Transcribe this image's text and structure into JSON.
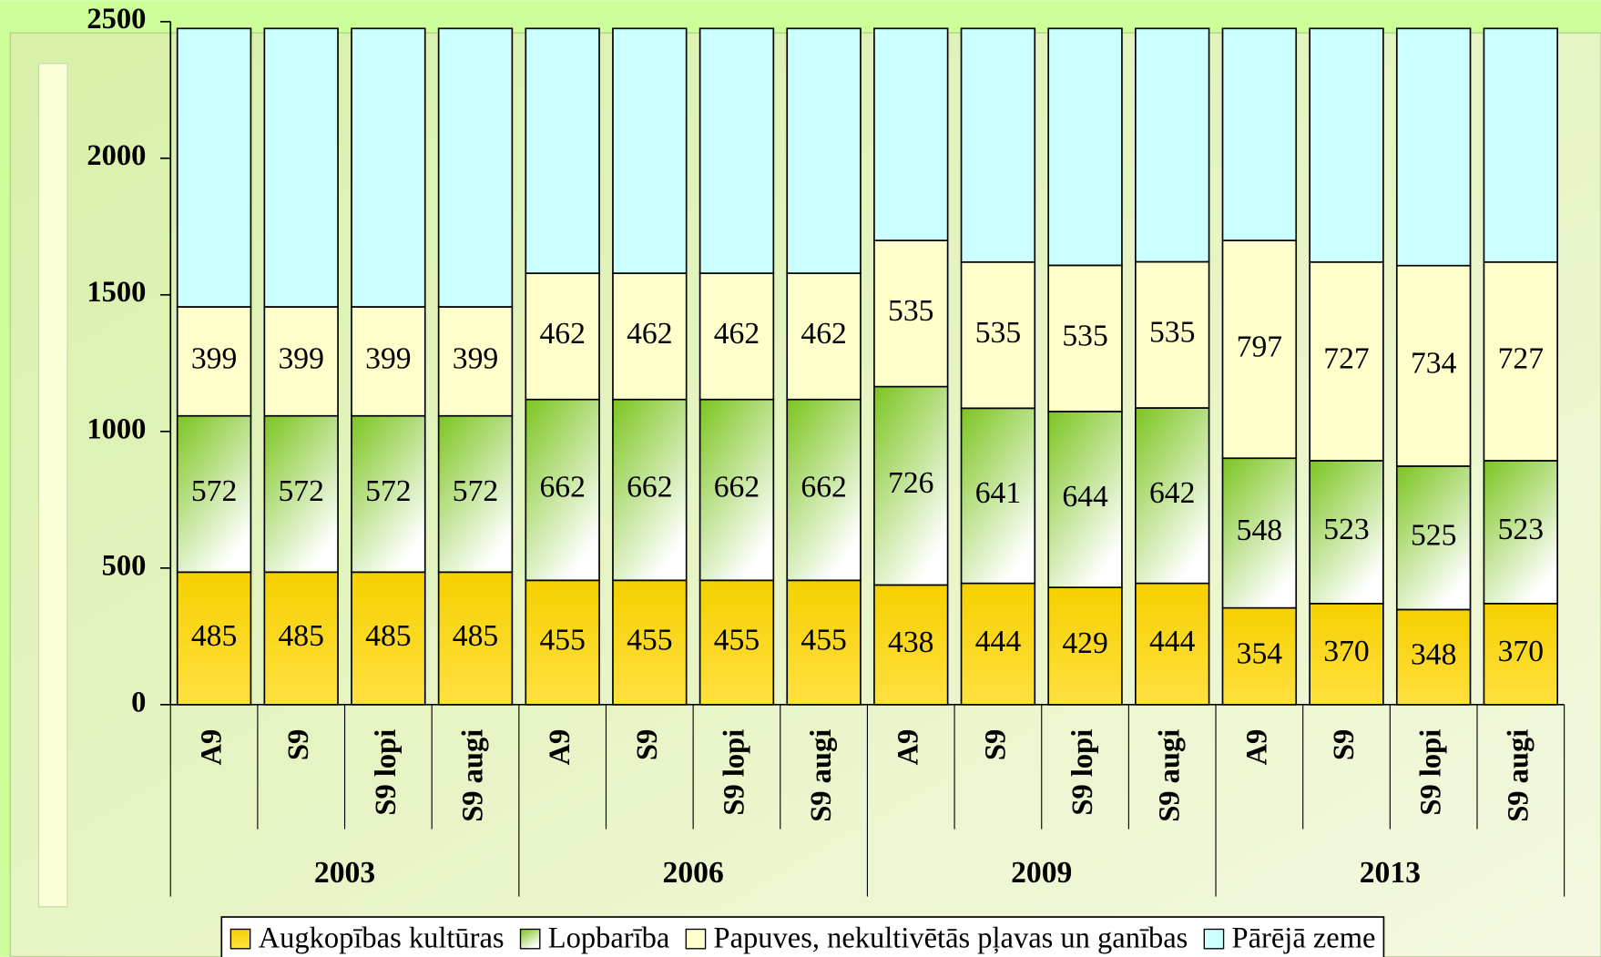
{
  "chart_data": {
    "type": "stacked_bar",
    "categories": [
      "A9",
      "S9",
      "S9 lopi",
      "S9 augi",
      "A9",
      "S9",
      "S9 lopi",
      "S9 augi",
      "A9",
      "S9",
      "S9 lopi",
      "S9 augi",
      "A9",
      "S9",
      "S9 lopi",
      "S9 augi"
    ],
    "groups": [
      "2003",
      "2006",
      "2009",
      "2013"
    ],
    "series": [
      {
        "name": "Augkopības kultūras",
        "color": "#f5d000",
        "labels": true,
        "values": [
          485,
          485,
          485,
          485,
          455,
          455,
          455,
          455,
          438,
          444,
          429,
          444,
          354,
          370,
          348,
          370
        ]
      },
      {
        "name": "Lopbarība",
        "color": "#7cc520",
        "labels": true,
        "values": [
          572,
          572,
          572,
          572,
          662,
          662,
          662,
          662,
          726,
          641,
          644,
          642,
          548,
          523,
          525,
          523
        ]
      },
      {
        "name": "Papuves, nekultivētās pļavas un ganības",
        "color": "#ffffcc",
        "labels": true,
        "values": [
          399,
          399,
          399,
          399,
          462,
          462,
          462,
          462,
          535,
          535,
          535,
          535,
          797,
          727,
          734,
          727
        ]
      },
      {
        "name": "Pārējā zeme",
        "color": "#ccffff",
        "labels": false,
        "values": [
          1019,
          1019,
          1019,
          1019,
          896,
          896,
          896,
          896,
          776,
          855,
          867,
          854,
          776,
          855,
          868,
          855
        ]
      }
    ],
    "ylim": [
      0,
      2500
    ],
    "yticks": [
      0,
      500,
      1000,
      1500,
      2000,
      2500
    ],
    "grid": false
  }
}
